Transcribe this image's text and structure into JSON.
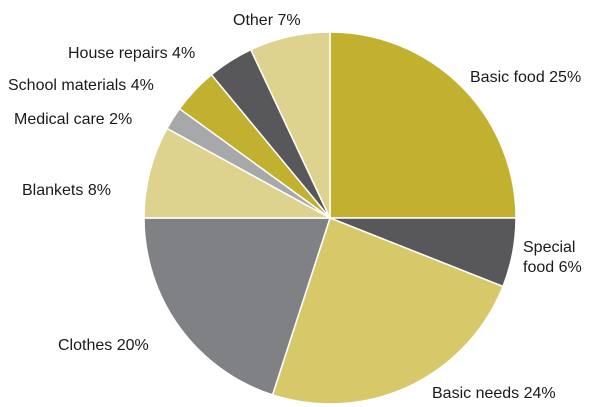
{
  "chart_data": {
    "type": "pie",
    "title": "",
    "legend": "none",
    "slices": [
      {
        "label": "Basic food 25%",
        "value": 25,
        "color": "#c2b12e"
      },
      {
        "label": "Special food 6%",
        "value": 6,
        "color": "#58585a"
      },
      {
        "label": "Basic needs 24%",
        "value": 24,
        "color": "#d7c96a"
      },
      {
        "label": "Clothes 20%",
        "value": 20,
        "color": "#808184"
      },
      {
        "label": "Blankets 8%",
        "value": 8,
        "color": "#ddd38e"
      },
      {
        "label": "Medical care 2%",
        "value": 2,
        "color": "#a7a8aa"
      },
      {
        "label": "School materials 4%",
        "value": 4,
        "color": "#c2b12e"
      },
      {
        "label": "House repairs 4%",
        "value": 4,
        "color": "#58585a"
      },
      {
        "label": "Other 7%",
        "value": 7,
        "color": "#ddd38e"
      }
    ]
  }
}
